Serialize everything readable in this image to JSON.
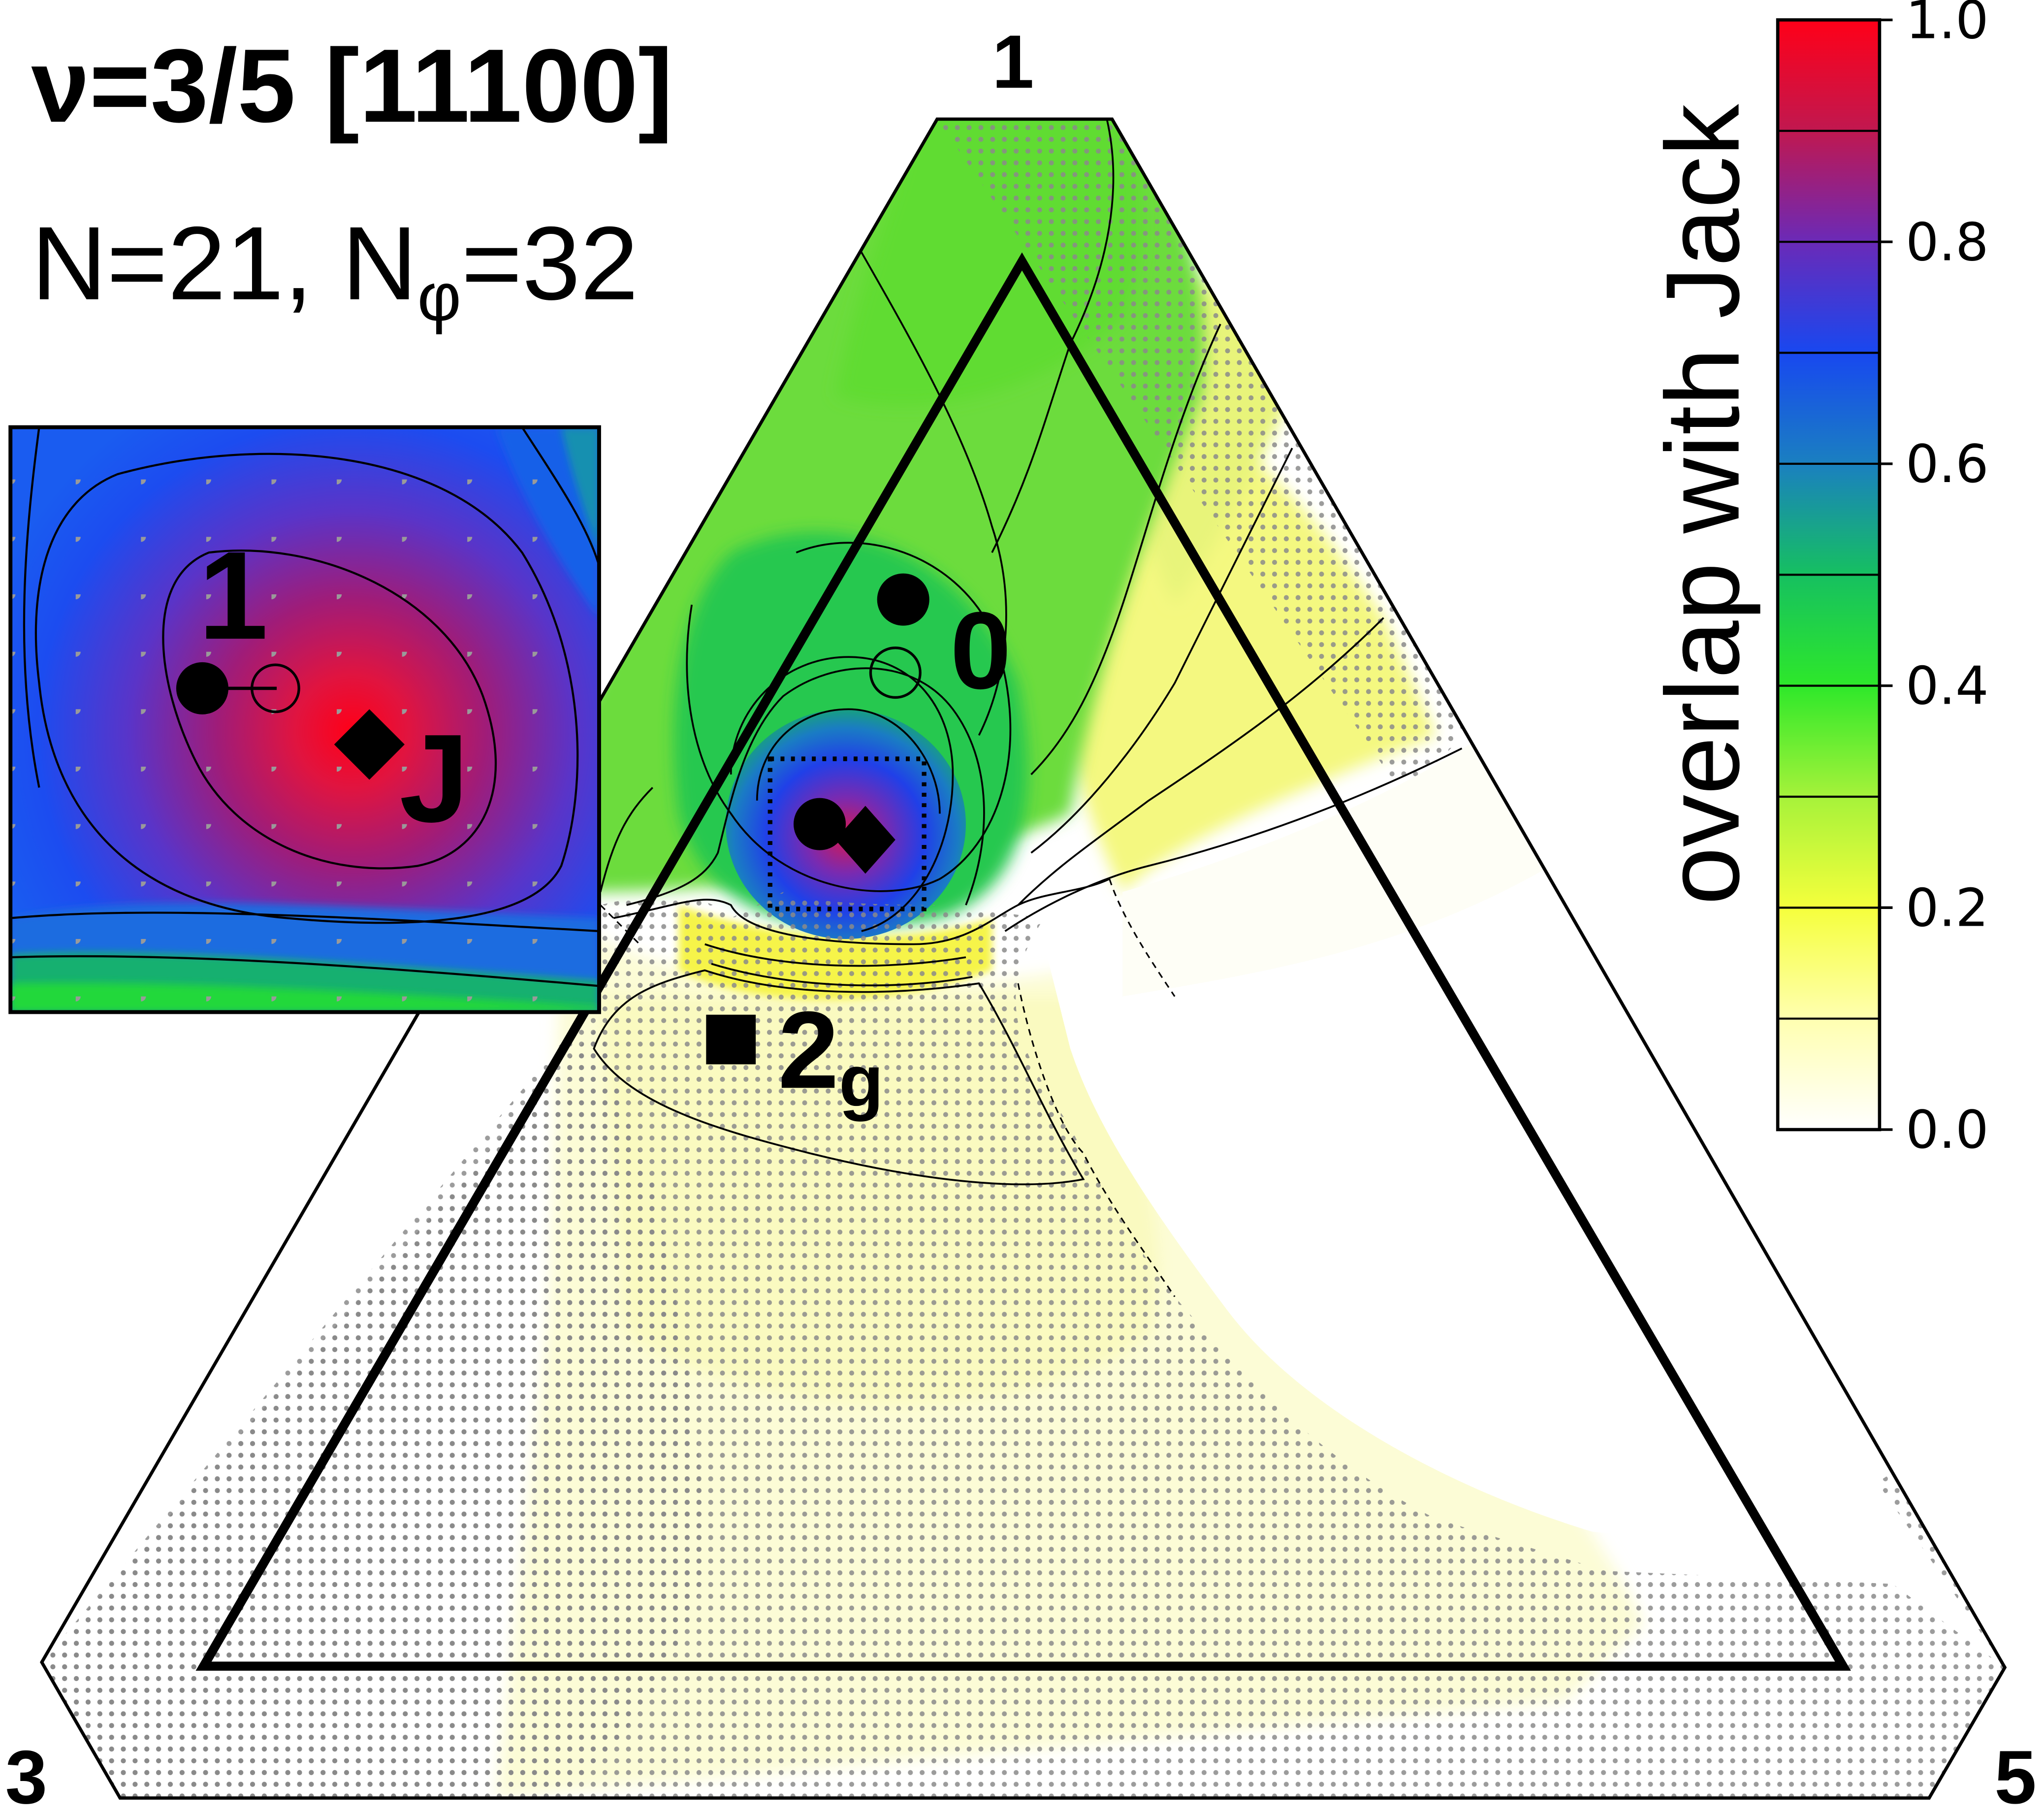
{
  "chart_data": {
    "type": "heatmap",
    "title": "ν=3/5 [11100]",
    "subtitle_prefix": "N=21, N",
    "subtitle_sub": "φ",
    "subtitle_suffix": "=32",
    "colorbar": {
      "label": "overlap with Jack",
      "range": [
        0,
        1
      ],
      "ticks": [
        "1.0",
        "0.8",
        "0.6",
        "0.4",
        "0.2",
        "0.0"
      ],
      "levels": [
        0.0,
        0.1,
        0.2,
        0.3,
        0.4,
        0.5,
        0.6,
        0.7,
        0.8,
        0.9,
        1.0
      ],
      "colors": [
        "#ffffff",
        "#ffffb0",
        "#f5ff3c",
        "#a6f23a",
        "#2ee82a",
        "#16c060",
        "#1a80c0",
        "#1848f0",
        "#6a2ab8",
        "#c01850",
        "#ff0018"
      ]
    },
    "vertex_labels": {
      "top": "1",
      "left": "3",
      "right": "5"
    },
    "markers": [
      {
        "label": "0",
        "shape": "filled-circle"
      },
      {
        "label": "2",
        "sub": "g",
        "shape": "filled-square"
      },
      {
        "label": "",
        "shape": "open-circle"
      },
      {
        "label": "",
        "shape": "filled-circle"
      },
      {
        "label": "",
        "shape": "filled-diamond"
      }
    ],
    "inset": {
      "markers": [
        {
          "label": "1",
          "shape": "filled-circle"
        },
        {
          "label": "",
          "shape": "open-circle"
        },
        {
          "label": "J",
          "shape": "filled-diamond"
        }
      ]
    },
    "grid": false
  },
  "colors": {
    "stipple": "#8a8a8a",
    "outline": "#000000"
  }
}
